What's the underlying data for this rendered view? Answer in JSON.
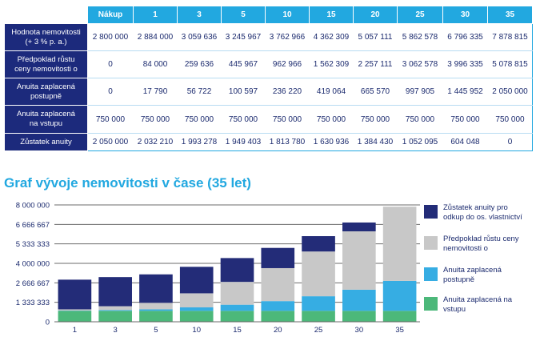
{
  "table": {
    "header": [
      "",
      "Nákup",
      "1",
      "3",
      "5",
      "10",
      "15",
      "20",
      "25",
      "30",
      "35"
    ],
    "rows": [
      {
        "label_line1": "Hodnota nemovitosti",
        "label_line2": "(+ 3 % p. a.)",
        "cells": [
          "2 800 000",
          "2 884 000",
          "3 059 636",
          "3 245 967",
          "3 762 966",
          "4 362 309",
          "5 057 111",
          "5 862 578",
          "6 796 335",
          "7 878 815"
        ]
      },
      {
        "label_line1": "Předpoklad růstu",
        "label_line2": "ceny nemovitosti o",
        "cells": [
          "0",
          "84 000",
          "259 636",
          "445 967",
          "962 966",
          "1 562 309",
          "2 257 111",
          "3 062 578",
          "3 996 335",
          "5 078 815"
        ]
      },
      {
        "label_line1": "Anuita zaplacená",
        "label_line2": "postupně",
        "cells": [
          "0",
          "17 790",
          "56 722",
          "100 597",
          "236 220",
          "419 064",
          "665 570",
          "997 905",
          "1 445 952",
          "2 050 000"
        ]
      },
      {
        "label_line1": "Anuita zaplacená",
        "label_line2": "na vstupu",
        "cells": [
          "750 000",
          "750 000",
          "750 000",
          "750 000",
          "750 000",
          "750 000",
          "750 000",
          "750 000",
          "750 000",
          "750 000"
        ]
      },
      {
        "label_line1": "Zůstatek anuity",
        "label_line2": "",
        "cells": [
          "2 050 000",
          "2 032 210",
          "1 993 278",
          "1 949 403",
          "1 813 780",
          "1 630 936",
          "1 384 430",
          "1 052 095",
          "604 048",
          "0"
        ]
      }
    ]
  },
  "chart_title": "Graf vývoje nemovitosti v čase (35 let)",
  "chart_data": {
    "type": "bar",
    "stacked": true,
    "title": "Graf vývoje nemovitosti v čase (35 let)",
    "categories": [
      "1",
      "3",
      "5",
      "10",
      "15",
      "20",
      "25",
      "30",
      "35"
    ],
    "series": [
      {
        "name": "Anuita zaplacená na vstupu",
        "color": "#4cb87a",
        "values": [
          750000,
          750000,
          750000,
          750000,
          750000,
          750000,
          750000,
          750000,
          750000
        ]
      },
      {
        "name": "Anuita zaplacená postupně",
        "color": "#36ade3",
        "values": [
          17790,
          56722,
          100597,
          236220,
          419064,
          665570,
          997905,
          1445952,
          2050000
        ]
      },
      {
        "name": "Předpoklad růstu ceny nemovitosti o",
        "color": "#c8c8c8",
        "values": [
          84000,
          259636,
          445967,
          962966,
          1562309,
          2257111,
          3062578,
          3996335,
          5078815
        ]
      },
      {
        "name": "Zůstatek anuity pro odkup do os. vlastnictví",
        "color": "#232c78",
        "values": [
          2032210,
          1993278,
          1949403,
          1813780,
          1630936,
          1384430,
          1052095,
          604048,
          0
        ]
      }
    ],
    "ylim": [
      0,
      8000000
    ],
    "yticks": [
      0,
      1333333,
      2666667,
      4000000,
      5333333,
      6666667,
      8000000
    ],
    "ytick_labels": [
      "0",
      "1 333 333",
      "2 666 667",
      "4 000 000",
      "5 333 333",
      "6 666 667",
      "8 000 000"
    ],
    "grid": true,
    "legend_position": "right"
  },
  "legend": [
    {
      "line1": "Zůstatek anuity pro",
      "line2": "odkup do os. vlastnictví",
      "color": "#232c78"
    },
    {
      "line1": "Předpoklad růstu ceny",
      "line2": "nemovitosti o",
      "color": "#c8c8c8"
    },
    {
      "line1": "Anuita zaplacená",
      "line2": "postupně",
      "color": "#36ade3"
    },
    {
      "line1": "Anuita zaplacená na",
      "line2": "vstupu",
      "color": "#4cb87a"
    }
  ]
}
